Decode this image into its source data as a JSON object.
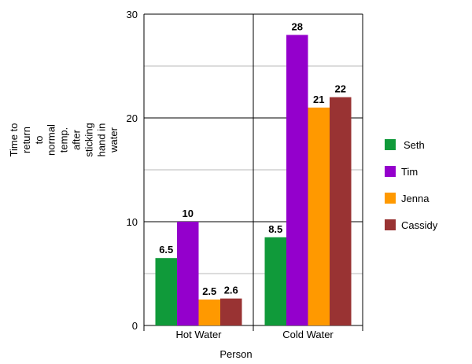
{
  "chart_data": {
    "type": "bar",
    "title": "",
    "xlabel": "Person",
    "ylabel_lines": [
      "Time to",
      "return",
      "to",
      "normal",
      "temp.",
      "after",
      "sticking",
      "hand in",
      "water"
    ],
    "ylim": [
      0,
      30
    ],
    "yticks": [
      0,
      10,
      20,
      30
    ],
    "minor_gridlines": [
      5,
      15,
      25
    ],
    "grid": true,
    "legend_position": "right",
    "categories": [
      "Hot Water",
      "Cold Water"
    ],
    "series": [
      {
        "name": "Seth",
        "color": "#109a3a",
        "values": [
          6.5,
          8.5
        ]
      },
      {
        "name": "Tim",
        "color": "#9400cc",
        "values": [
          10,
          28
        ]
      },
      {
        "name": "Jenna",
        "color": "#ff9900",
        "values": [
          2.5,
          21
        ]
      },
      {
        "name": "Cassidy",
        "color": "#993333",
        "values": [
          2.6,
          22
        ]
      }
    ]
  }
}
